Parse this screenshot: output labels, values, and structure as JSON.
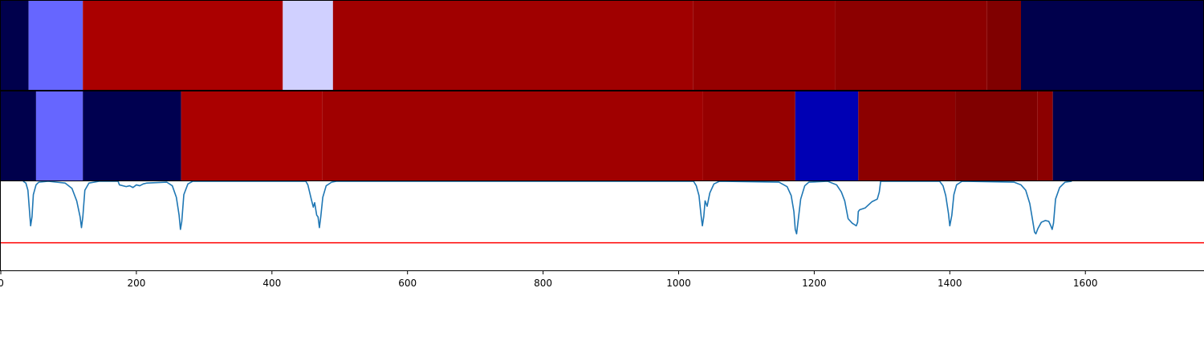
{
  "chart_data": {
    "type": "heatmap",
    "x_range": [
      0,
      1775
    ],
    "xticks": [
      {
        "value": 0,
        "label": "0"
      },
      {
        "value": 200,
        "label": "200"
      },
      {
        "value": 400,
        "label": "400"
      },
      {
        "value": 600,
        "label": "600"
      },
      {
        "value": 800,
        "label": "800"
      },
      {
        "value": 1000,
        "label": "1000"
      },
      {
        "value": 1200,
        "label": "1200"
      },
      {
        "value": 1400,
        "label": "1400"
      },
      {
        "value": 1600,
        "label": "1600"
      }
    ],
    "segment_rows": [
      {
        "segments": [
          {
            "start": 0,
            "end": 41,
            "color": "#00004c"
          },
          {
            "start": 41,
            "end": 121,
            "color": "#6666ff"
          },
          {
            "start": 121,
            "end": 416,
            "color": "#aa0000"
          },
          {
            "start": 416,
            "end": 490,
            "color": "#d0d0ff"
          },
          {
            "start": 490,
            "end": 1021,
            "color": "#a00000"
          },
          {
            "start": 1021,
            "end": 1231,
            "color": "#960000"
          },
          {
            "start": 1231,
            "end": 1455,
            "color": "#8c0000"
          },
          {
            "start": 1455,
            "end": 1505,
            "color": "#800000"
          },
          {
            "start": 1505,
            "end": 1775,
            "color": "#00004c"
          }
        ]
      },
      {
        "segments": [
          {
            "start": 0,
            "end": 52,
            "color": "#00004c"
          },
          {
            "start": 52,
            "end": 121,
            "color": "#6666ff"
          },
          {
            "start": 121,
            "end": 266,
            "color": "#000050"
          },
          {
            "start": 266,
            "end": 474,
            "color": "#aa0000"
          },
          {
            "start": 474,
            "end": 1036,
            "color": "#a00000"
          },
          {
            "start": 1036,
            "end": 1172,
            "color": "#960000"
          },
          {
            "start": 1172,
            "end": 1265,
            "color": "#0000b4"
          },
          {
            "start": 1265,
            "end": 1408,
            "color": "#8c0000"
          },
          {
            "start": 1408,
            "end": 1529,
            "color": "#800000"
          },
          {
            "start": 1529,
            "end": 1552,
            "color": "#8c0000"
          },
          {
            "start": 1552,
            "end": 1775,
            "color": "#00004c"
          }
        ]
      }
    ],
    "signal": {
      "color": "#1f77b4",
      "ylim": [
        0,
        1
      ],
      "points": [
        [
          33,
          1.0
        ],
        [
          37,
          0.98
        ],
        [
          40,
          0.9
        ],
        [
          42,
          0.7
        ],
        [
          44,
          0.5
        ],
        [
          46,
          0.6
        ],
        [
          48,
          0.85
        ],
        [
          52,
          0.96
        ],
        [
          56,
          0.99
        ],
        [
          70,
          1.0
        ],
        [
          95,
          0.98
        ],
        [
          105,
          0.92
        ],
        [
          112,
          0.78
        ],
        [
          117,
          0.6
        ],
        [
          119,
          0.48
        ],
        [
          121,
          0.6
        ],
        [
          124,
          0.9
        ],
        [
          130,
          0.98
        ],
        [
          145,
          1.0
        ],
        [
          173,
          1.0
        ],
        [
          175,
          0.96
        ],
        [
          185,
          0.94
        ],
        [
          190,
          0.95
        ],
        [
          195,
          0.93
        ],
        [
          200,
          0.96
        ],
        [
          205,
          0.95
        ],
        [
          210,
          0.97
        ],
        [
          215,
          0.98
        ],
        [
          245,
          0.99
        ],
        [
          253,
          0.95
        ],
        [
          259,
          0.82
        ],
        [
          263,
          0.62
        ],
        [
          265,
          0.46
        ],
        [
          267,
          0.55
        ],
        [
          270,
          0.85
        ],
        [
          276,
          0.97
        ],
        [
          283,
          1.0
        ],
        [
          450,
          1.0
        ],
        [
          453,
          0.96
        ],
        [
          458,
          0.8
        ],
        [
          461,
          0.71
        ],
        [
          463,
          0.76
        ],
        [
          466,
          0.62
        ],
        [
          468,
          0.6
        ],
        [
          470,
          0.48
        ],
        [
          472,
          0.6
        ],
        [
          475,
          0.82
        ],
        [
          480,
          0.95
        ],
        [
          488,
          0.99
        ],
        [
          495,
          1.0
        ],
        [
          1022,
          1.0
        ],
        [
          1026,
          0.95
        ],
        [
          1030,
          0.84
        ],
        [
          1033,
          0.62
        ],
        [
          1035,
          0.5
        ],
        [
          1037,
          0.6
        ],
        [
          1039,
          0.78
        ],
        [
          1042,
          0.72
        ],
        [
          1046,
          0.87
        ],
        [
          1052,
          0.97
        ],
        [
          1060,
          1.0
        ],
        [
          1148,
          0.99
        ],
        [
          1160,
          0.94
        ],
        [
          1166,
          0.84
        ],
        [
          1170,
          0.66
        ],
        [
          1172,
          0.46
        ],
        [
          1174,
          0.41
        ],
        [
          1176,
          0.54
        ],
        [
          1180,
          0.8
        ],
        [
          1186,
          0.95
        ],
        [
          1192,
          0.99
        ],
        [
          1220,
          1.0
        ],
        [
          1233,
          0.96
        ],
        [
          1240,
          0.88
        ],
        [
          1245,
          0.78
        ],
        [
          1250,
          0.58
        ],
        [
          1256,
          0.53
        ],
        [
          1260,
          0.51
        ],
        [
          1262,
          0.5
        ],
        [
          1264,
          0.54
        ],
        [
          1265,
          0.66
        ],
        [
          1267,
          0.68
        ],
        [
          1275,
          0.7
        ],
        [
          1285,
          0.77
        ],
        [
          1293,
          0.8
        ],
        [
          1296,
          0.88
        ],
        [
          1298,
          1.0
        ],
        [
          1385,
          1.0
        ],
        [
          1390,
          0.95
        ],
        [
          1394,
          0.84
        ],
        [
          1398,
          0.64
        ],
        [
          1400,
          0.5
        ],
        [
          1403,
          0.62
        ],
        [
          1406,
          0.85
        ],
        [
          1410,
          0.96
        ],
        [
          1418,
          1.0
        ],
        [
          1495,
          0.99
        ],
        [
          1505,
          0.96
        ],
        [
          1512,
          0.9
        ],
        [
          1518,
          0.75
        ],
        [
          1522,
          0.57
        ],
        [
          1525,
          0.43
        ],
        [
          1527,
          0.41
        ],
        [
          1530,
          0.47
        ],
        [
          1535,
          0.54
        ],
        [
          1541,
          0.56
        ],
        [
          1546,
          0.55
        ],
        [
          1549,
          0.5
        ],
        [
          1551,
          0.46
        ],
        [
          1553,
          0.53
        ],
        [
          1556,
          0.8
        ],
        [
          1562,
          0.93
        ],
        [
          1570,
          0.99
        ],
        [
          1580,
          1.0
        ]
      ]
    },
    "threshold": {
      "color": "#ff0000",
      "value": 0.31
    }
  }
}
